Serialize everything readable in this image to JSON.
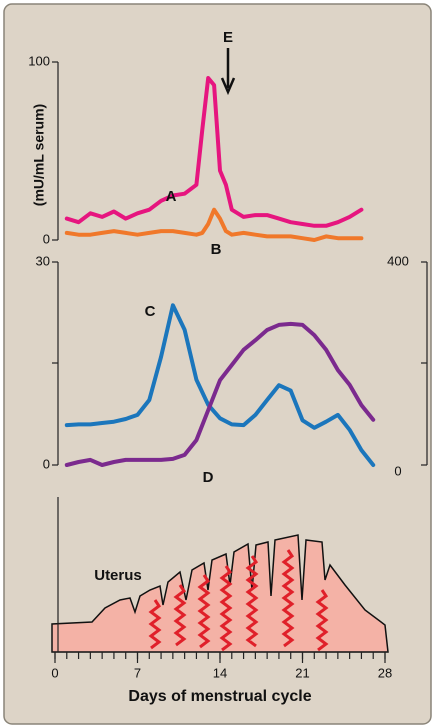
{
  "chart_data": [
    {
      "type": "line",
      "ylabel": "(mU/mL serum)",
      "annotation": "E",
      "x": [
        1,
        2,
        3,
        4,
        5,
        6,
        7,
        8,
        9,
        10,
        11,
        12,
        12.5,
        13,
        13.5,
        14,
        14.5,
        15,
        16,
        17,
        18,
        19,
        20,
        21,
        22,
        23,
        24,
        25,
        26
      ],
      "ylim": [
        0,
        100
      ],
      "yticks": [
        0,
        100
      ],
      "series": [
        {
          "name": "A",
          "color": "#e6157f",
          "values": [
            12,
            10,
            15,
            13,
            16,
            12,
            15,
            17,
            22,
            25,
            26,
            31,
            62,
            91,
            87,
            39,
            31,
            17,
            13,
            14,
            14,
            12,
            10,
            9,
            8,
            8,
            10,
            13,
            17
          ]
        },
        {
          "name": "B",
          "color": "#f0782a",
          "values": [
            4,
            3,
            3,
            4,
            5,
            4,
            3,
            4,
            5,
            5,
            4,
            3,
            4,
            9,
            17,
            12,
            5,
            3,
            4,
            3,
            2,
            2,
            2,
            1,
            0,
            2,
            1,
            1,
            1
          ]
        }
      ]
    },
    {
      "type": "line",
      "x": [
        1,
        2,
        3,
        4,
        5,
        6,
        7,
        8,
        9,
        10,
        11,
        12,
        13,
        14,
        15,
        16,
        17,
        18,
        19,
        20,
        21,
        22,
        23,
        24,
        25,
        26,
        27
      ],
      "ylim": [
        0,
        30
      ],
      "yticks": [
        0,
        30
      ],
      "y2lim": [
        0,
        400
      ],
      "y2ticks": [
        0,
        400
      ],
      "series": [
        {
          "name": "C",
          "color": "#1b76bc",
          "values": [
            5.9,
            6,
            6,
            6.2,
            6.4,
            6.8,
            7.4,
            9.6,
            16,
            23.6,
            20,
            12.6,
            8.9,
            6.9,
            6,
            5.9,
            7.4,
            9.6,
            11.8,
            11,
            6.6,
            5.5,
            6.4,
            7.4,
            5.2,
            2.2,
            0
          ]
        },
        {
          "name": "D",
          "color": "#7b2a8e",
          "axis": "y2",
          "values": [
            0,
            6,
            10,
            0,
            6,
            10,
            10,
            10,
            10,
            12,
            20,
            49,
            108,
            167,
            197,
            227,
            246,
            266,
            276,
            278,
            276,
            256,
            227,
            187,
            158,
            118,
            89
          ]
        }
      ]
    },
    {
      "type": "area",
      "annotation": "Uterus",
      "xlabel": "Days of menstrual cycle",
      "xlim": [
        0,
        28
      ],
      "xticks": [
        0,
        7,
        14,
        21,
        28
      ]
    }
  ]
}
